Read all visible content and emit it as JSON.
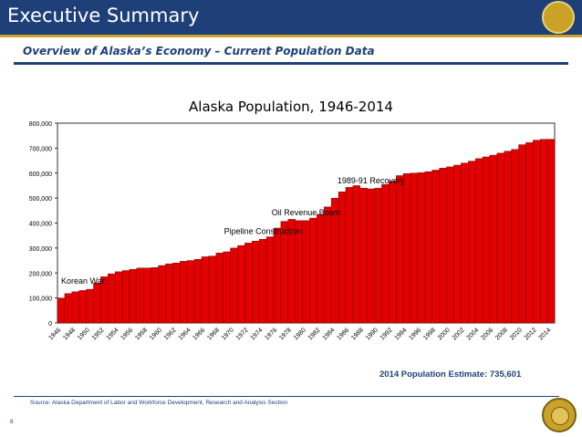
{
  "slide": {
    "title": "Executive Summary",
    "subtitle": "Overview of Alaska’s Economy – Current Population Data",
    "estimate": "2014 Population Estimate: 735,601",
    "source": "Source: Alaska Department of Labor and Workforce Development, Research and Analysis Section",
    "page_number": "8"
  },
  "colors": {
    "bar_fill": "#e30000",
    "bar_stroke": "#5a0000",
    "header": "#1f3f78",
    "accent_gold": "#c9a227"
  },
  "chart_data": {
    "type": "bar",
    "title": "Alaska Population, 1946-2014",
    "xlabel": "",
    "ylabel": "",
    "ylim": [
      0,
      800000
    ],
    "yticks": [
      0,
      100000,
      200000,
      300000,
      400000,
      500000,
      600000,
      700000,
      800000
    ],
    "ytick_labels": [
      "0",
      "100,000",
      "200,000",
      "300,000",
      "400,000",
      "500,000",
      "600,000",
      "700,000",
      "800,000"
    ],
    "grid": false,
    "legend": "none",
    "x": [
      1946,
      1947,
      1948,
      1949,
      1950,
      1951,
      1952,
      1953,
      1954,
      1955,
      1956,
      1957,
      1958,
      1959,
      1960,
      1961,
      1962,
      1963,
      1964,
      1965,
      1966,
      1967,
      1968,
      1969,
      1970,
      1971,
      1972,
      1973,
      1974,
      1975,
      1976,
      1977,
      1978,
      1979,
      1980,
      1981,
      1982,
      1983,
      1984,
      1985,
      1986,
      1987,
      1988,
      1989,
      1990,
      1991,
      1992,
      1993,
      1994,
      1995,
      1996,
      1997,
      1998,
      1999,
      2000,
      2001,
      2002,
      2003,
      2004,
      2005,
      2006,
      2007,
      2008,
      2009,
      2010,
      2011,
      2012,
      2013,
      2014
    ],
    "xtick_labels": [
      "1946",
      "1948",
      "1950",
      "1952",
      "1954",
      "1956",
      "1958",
      "1960",
      "1962",
      "1964",
      "1966",
      "1968",
      "1970",
      "1972",
      "1974",
      "1976",
      "1978",
      "1980",
      "1982",
      "1984",
      "1986",
      "1988",
      "1990",
      "1992",
      "1994",
      "1996",
      "1998",
      "2000",
      "2002",
      "2004",
      "2006",
      "2008",
      "2010",
      "2012",
      "2014"
    ],
    "values": [
      100000,
      118000,
      125000,
      130000,
      135000,
      160000,
      185000,
      197000,
      205000,
      210000,
      215000,
      220000,
      220000,
      222000,
      230000,
      237000,
      240000,
      247000,
      250000,
      255000,
      265000,
      268000,
      280000,
      285000,
      300000,
      310000,
      320000,
      328000,
      335000,
      345000,
      380000,
      407000,
      415000,
      410000,
      410000,
      420000,
      435000,
      465000,
      500000,
      525000,
      543000,
      550000,
      540000,
      537000,
      540000,
      555000,
      567000,
      590000,
      598000,
      600000,
      602000,
      606000,
      612000,
      620000,
      625000,
      632000,
      640000,
      648000,
      658000,
      665000,
      672000,
      680000,
      688000,
      695000,
      714000,
      722000,
      732000,
      735000,
      735601
    ],
    "annotations": [
      {
        "text": "Korean War",
        "year": 1950
      },
      {
        "text": "Pipeline Construction",
        "year": 1974
      },
      {
        "text": "Oil Revenue Boom",
        "year": 1980
      },
      {
        "text": "1989-91 Recovery",
        "year": 1989
      }
    ]
  }
}
